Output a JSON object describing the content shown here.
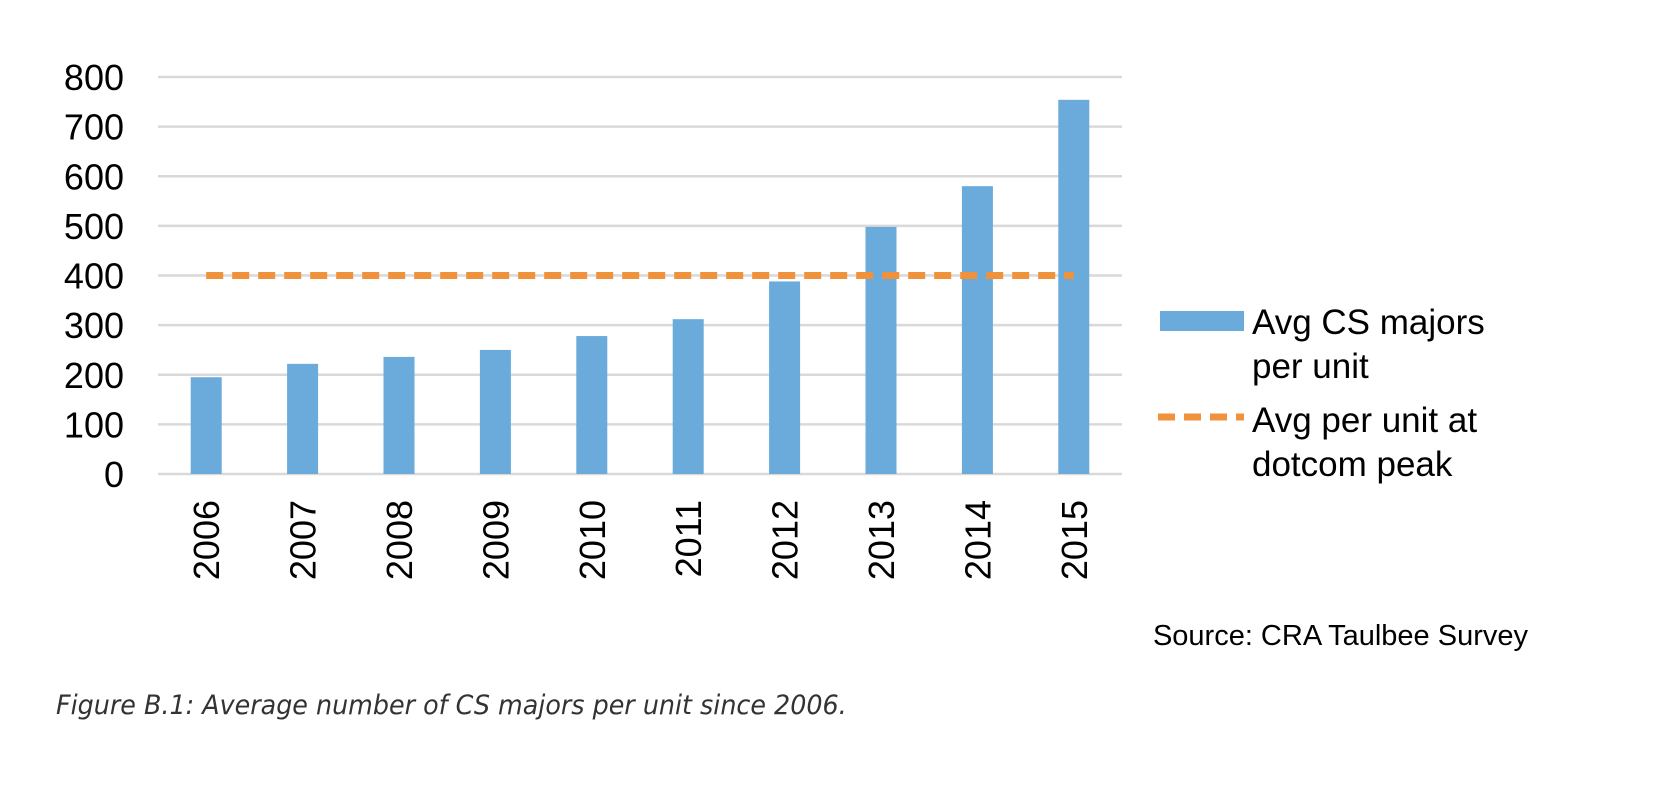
{
  "chart_data": {
    "type": "bar",
    "categories": [
      "2006",
      "2007",
      "2008",
      "2009",
      "2010",
      "2011",
      "2012",
      "2013",
      "2014",
      "2015"
    ],
    "series": [
      {
        "name": "Avg CS majors per unit",
        "type": "bar",
        "color": "#6aabdc",
        "values": [
          195,
          222,
          236,
          250,
          278,
          312,
          388,
          498,
          580,
          754
        ]
      },
      {
        "name": "Avg per unit at dotcom peak",
        "type": "line",
        "style": "dashed",
        "color": "#f0913c",
        "values": [
          400,
          400,
          400,
          400,
          400,
          400,
          400,
          400,
          400,
          400
        ]
      }
    ],
    "yticks": [
      "0",
      "100",
      "200",
      "300",
      "400",
      "500",
      "600",
      "700",
      "800"
    ],
    "ylim": [
      0,
      800
    ],
    "grid": true,
    "legend": {
      "placement": "right",
      "bar_lines": [
        "Avg CS majors",
        "per unit"
      ],
      "line_lines": [
        "Avg per unit at",
        "dotcom peak"
      ]
    },
    "xtick_rotation": -90,
    "source": "Source: CRA Taulbee Survey"
  },
  "caption": "Figure B.1: Average number of CS majors per unit since 2006."
}
